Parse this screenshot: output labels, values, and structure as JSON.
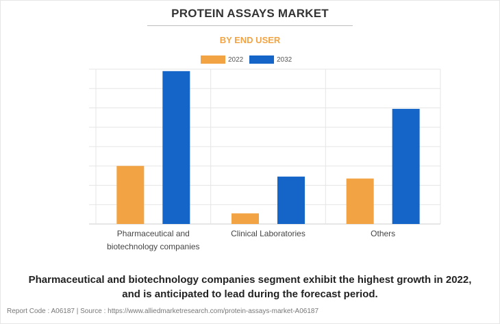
{
  "title": "PROTEIN ASSAYS MARKET",
  "subtitle": "BY END USER",
  "headline_line1": "Pharmaceutical and biotechnology companies segment exhibit the highest growth in 2022,",
  "headline_line2": "and is anticipated to lead during the forecast period.",
  "footer": "Report Code : A06187  |  Source : https://www.alliedmarketresearch.com/protein-assays-market-A06187",
  "colors": {
    "2022": "#f2a444",
    "2032": "#1565c8",
    "grid": "#e5e5e5",
    "title_accent": "#f2a444"
  },
  "chart_data": {
    "type": "bar",
    "title": "PROTEIN ASSAYS MARKET",
    "subtitle": "BY END USER",
    "categories": [
      [
        "Pharmaceutical and",
        "biotechnology companies"
      ],
      [
        "Clinical Laboratories"
      ],
      [
        "Others"
      ]
    ],
    "series": [
      {
        "name": "2022",
        "values": [
          3.0,
          0.55,
          2.35
        ]
      },
      {
        "name": "2032",
        "values": [
          7.9,
          2.45,
          5.95
        ]
      }
    ],
    "ylim": [
      0,
      8
    ],
    "ytick_count": 8,
    "y_tick_labels_shown": false,
    "grid": true,
    "legend": "top-center"
  }
}
